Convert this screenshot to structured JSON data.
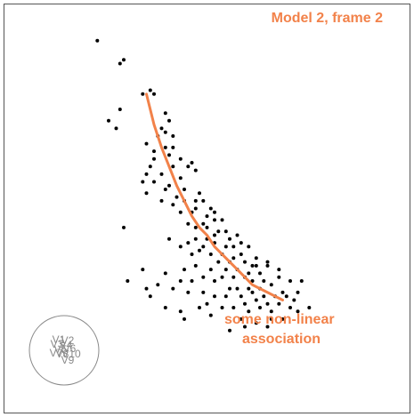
{
  "chart_data": {
    "type": "scatter",
    "title": "Model 2, frame 2",
    "annotation": [
      "some non-linear",
      "association"
    ],
    "xlim": [
      0,
      1
    ],
    "ylim": [
      0,
      1
    ],
    "grid": false,
    "legend": "none",
    "colors": {
      "points": "#000000",
      "fit": "#f2824a",
      "text": "#f2824a",
      "axes_circle": "#8a8a8a",
      "frame": "#555555"
    },
    "points": [
      [
        0.21,
        0.94
      ],
      [
        0.28,
        0.89
      ],
      [
        0.27,
        0.88
      ],
      [
        0.33,
        0.8
      ],
      [
        0.35,
        0.81
      ],
      [
        0.36,
        0.8
      ],
      [
        0.27,
        0.76
      ],
      [
        0.24,
        0.73
      ],
      [
        0.26,
        0.71
      ],
      [
        0.39,
        0.75
      ],
      [
        0.4,
        0.73
      ],
      [
        0.39,
        0.7
      ],
      [
        0.41,
        0.69
      ],
      [
        0.34,
        0.67
      ],
      [
        0.36,
        0.65
      ],
      [
        0.39,
        0.66
      ],
      [
        0.4,
        0.64
      ],
      [
        0.43,
        0.63
      ],
      [
        0.41,
        0.61
      ],
      [
        0.45,
        0.61
      ],
      [
        0.38,
        0.59
      ],
      [
        0.36,
        0.57
      ],
      [
        0.46,
        0.62
      ],
      [
        0.47,
        0.6
      ],
      [
        0.43,
        0.58
      ],
      [
        0.4,
        0.56
      ],
      [
        0.44,
        0.55
      ],
      [
        0.39,
        0.55
      ],
      [
        0.33,
        0.57
      ],
      [
        0.34,
        0.54
      ],
      [
        0.38,
        0.52
      ],
      [
        0.41,
        0.51
      ],
      [
        0.44,
        0.52
      ],
      [
        0.43,
        0.49
      ],
      [
        0.47,
        0.52
      ],
      [
        0.48,
        0.54
      ],
      [
        0.49,
        0.52
      ],
      [
        0.51,
        0.5
      ],
      [
        0.5,
        0.48
      ],
      [
        0.46,
        0.49
      ],
      [
        0.45,
        0.46
      ],
      [
        0.47,
        0.45
      ],
      [
        0.49,
        0.46
      ],
      [
        0.52,
        0.47
      ],
      [
        0.5,
        0.45
      ],
      [
        0.53,
        0.44
      ],
      [
        0.55,
        0.44
      ],
      [
        0.52,
        0.43
      ],
      [
        0.5,
        0.42
      ],
      [
        0.47,
        0.42
      ],
      [
        0.45,
        0.41
      ],
      [
        0.49,
        0.4
      ],
      [
        0.43,
        0.4
      ],
      [
        0.4,
        0.42
      ],
      [
        0.52,
        0.41
      ],
      [
        0.55,
        0.4
      ],
      [
        0.57,
        0.4
      ],
      [
        0.54,
        0.38
      ],
      [
        0.51,
        0.38
      ],
      [
        0.48,
        0.39
      ],
      [
        0.46,
        0.38
      ],
      [
        0.57,
        0.37
      ],
      [
        0.59,
        0.38
      ],
      [
        0.6,
        0.36
      ],
      [
        0.56,
        0.36
      ],
      [
        0.53,
        0.36
      ],
      [
        0.62,
        0.35
      ],
      [
        0.58,
        0.34
      ],
      [
        0.55,
        0.34
      ],
      [
        0.51,
        0.34
      ],
      [
        0.47,
        0.35
      ],
      [
        0.44,
        0.34
      ],
      [
        0.61,
        0.33
      ],
      [
        0.64,
        0.33
      ],
      [
        0.63,
        0.35
      ],
      [
        0.66,
        0.35
      ],
      [
        0.6,
        0.32
      ],
      [
        0.57,
        0.32
      ],
      [
        0.54,
        0.32
      ],
      [
        0.52,
        0.31
      ],
      [
        0.49,
        0.32
      ],
      [
        0.46,
        0.31
      ],
      [
        0.43,
        0.31
      ],
      [
        0.39,
        0.33
      ],
      [
        0.65,
        0.31
      ],
      [
        0.62,
        0.31
      ],
      [
        0.67,
        0.3
      ],
      [
        0.64,
        0.29
      ],
      [
        0.61,
        0.29
      ],
      [
        0.58,
        0.29
      ],
      [
        0.56,
        0.29
      ],
      [
        0.59,
        0.27
      ],
      [
        0.62,
        0.28
      ],
      [
        0.65,
        0.27
      ],
      [
        0.68,
        0.27
      ],
      [
        0.7,
        0.28
      ],
      [
        0.66,
        0.25
      ],
      [
        0.63,
        0.26
      ],
      [
        0.6,
        0.25
      ],
      [
        0.55,
        0.27
      ],
      [
        0.52,
        0.27
      ],
      [
        0.49,
        0.28
      ],
      [
        0.45,
        0.28
      ],
      [
        0.41,
        0.29
      ],
      [
        0.37,
        0.3
      ],
      [
        0.33,
        0.34
      ],
      [
        0.29,
        0.31
      ],
      [
        0.35,
        0.27
      ],
      [
        0.39,
        0.24
      ],
      [
        0.44,
        0.21
      ],
      [
        0.5,
        0.25
      ],
      [
        0.54,
        0.24
      ],
      [
        0.57,
        0.24
      ],
      [
        0.61,
        0.23
      ],
      [
        0.64,
        0.24
      ],
      [
        0.67,
        0.23
      ],
      [
        0.69,
        0.25
      ],
      [
        0.72,
        0.24
      ],
      [
        0.74,
        0.23
      ],
      [
        0.77,
        0.24
      ],
      [
        0.73,
        0.26
      ],
      [
        0.71,
        0.27
      ],
      [
        0.74,
        0.28
      ],
      [
        0.75,
        0.31
      ],
      [
        0.72,
        0.31
      ],
      [
        0.69,
        0.32
      ],
      [
        0.69,
        0.34
      ],
      [
        0.66,
        0.36
      ],
      [
        0.63,
        0.37
      ],
      [
        0.59,
        0.21
      ],
      [
        0.63,
        0.2
      ],
      [
        0.67,
        0.21
      ],
      [
        0.7,
        0.21
      ],
      [
        0.66,
        0.19
      ],
      [
        0.6,
        0.19
      ],
      [
        0.56,
        0.18
      ],
      [
        0.51,
        0.22
      ],
      [
        0.48,
        0.24
      ],
      [
        0.43,
        0.23
      ],
      [
        0.34,
        0.29
      ],
      [
        0.28,
        0.45
      ],
      [
        0.42,
        0.53
      ],
      [
        0.47,
        0.5
      ],
      [
        0.52,
        0.49
      ],
      [
        0.54,
        0.47
      ],
      [
        0.56,
        0.42
      ],
      [
        0.59,
        0.41
      ],
      [
        0.61,
        0.4
      ],
      [
        0.58,
        0.43
      ],
      [
        0.36,
        0.63
      ],
      [
        0.35,
        0.61
      ],
      [
        0.37,
        0.69
      ],
      [
        0.38,
        0.71
      ],
      [
        0.41,
        0.66
      ],
      [
        0.34,
        0.59
      ]
    ],
    "fit_line": [
      [
        0.34,
        0.8
      ],
      [
        0.36,
        0.72
      ],
      [
        0.38,
        0.66
      ],
      [
        0.4,
        0.61
      ],
      [
        0.42,
        0.56
      ],
      [
        0.44,
        0.52
      ],
      [
        0.46,
        0.48
      ],
      [
        0.48,
        0.45
      ],
      [
        0.5,
        0.43
      ],
      [
        0.52,
        0.4
      ],
      [
        0.54,
        0.38
      ],
      [
        0.56,
        0.36
      ],
      [
        0.58,
        0.34
      ],
      [
        0.6,
        0.32
      ],
      [
        0.62,
        0.3
      ],
      [
        0.64,
        0.29
      ],
      [
        0.66,
        0.28
      ],
      [
        0.68,
        0.27
      ],
      [
        0.7,
        0.26
      ]
    ],
    "axes_legend": {
      "labels": [
        "V1",
        "V2",
        "V3",
        "V4",
        "V5",
        "V6",
        "V7",
        "V8",
        "V9",
        "V10"
      ]
    }
  }
}
